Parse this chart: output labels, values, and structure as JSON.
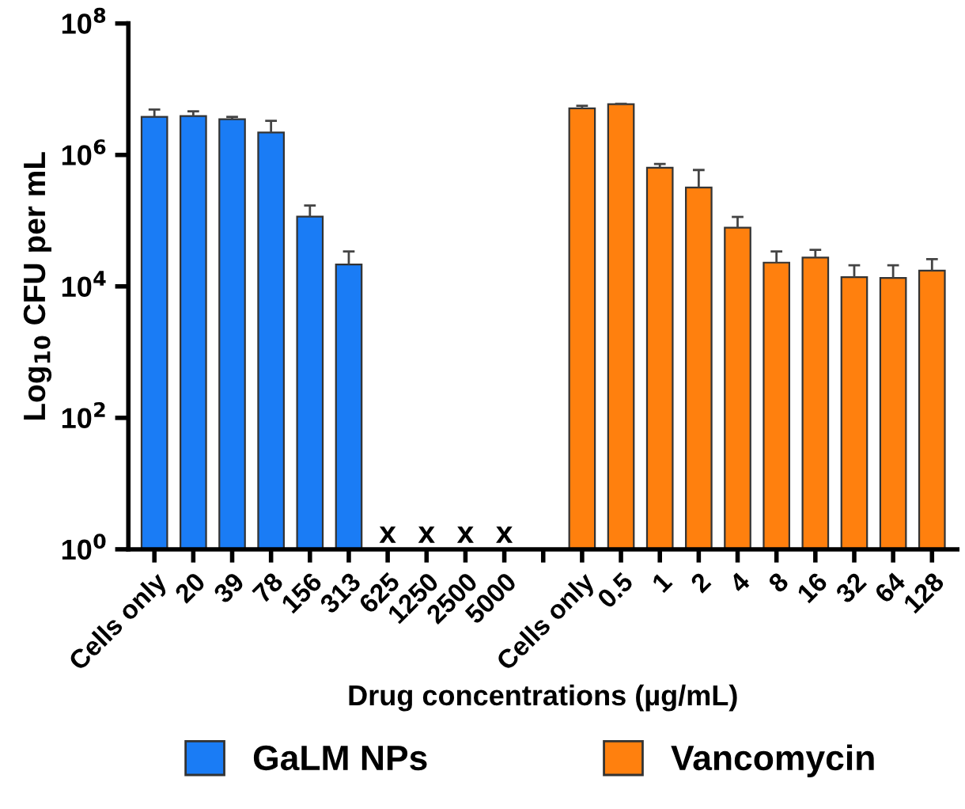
{
  "chart_data": {
    "type": "bar",
    "categories": [
      "Cells only",
      "20",
      "39",
      "78",
      "156",
      "313",
      "625",
      "1250",
      "2500",
      "5000",
      null,
      "Cells only",
      "0.5",
      "1",
      "2",
      "4",
      "8",
      "16",
      "32",
      "64",
      "128"
    ],
    "series": [
      {
        "name": "GaLM NPs",
        "color": "#1a7cf5",
        "values": [
          3800000,
          3900000,
          3500000,
          2200000,
          115000,
          21500,
          null,
          null,
          null,
          null,
          null,
          null,
          null,
          null,
          null,
          null,
          null,
          null,
          null,
          null,
          null
        ],
        "errors": [
          [
            3800000,
            4900000
          ],
          [
            3900000,
            4600000
          ],
          [
            3500000,
            3800000
          ],
          [
            2200000,
            3300000
          ],
          [
            115000,
            170000
          ],
          [
            21500,
            34000
          ],
          null,
          null,
          null,
          null,
          null,
          null,
          null,
          null,
          null,
          null,
          null,
          null,
          null,
          null,
          null
        ]
      },
      {
        "name": "Vancomycin",
        "color": "#ff800e",
        "values": [
          null,
          null,
          null,
          null,
          null,
          null,
          null,
          null,
          null,
          null,
          null,
          5100000,
          5900000,
          640000,
          320000,
          78000,
          23000,
          27500,
          13800,
          13400,
          17400
        ],
        "errors": [
          null,
          null,
          null,
          null,
          null,
          null,
          null,
          null,
          null,
          null,
          null,
          [
            5100000,
            5600000
          ],
          [
            5900000,
            6000000
          ],
          [
            640000,
            730000
          ],
          [
            320000,
            590000
          ],
          [
            78000,
            114000
          ],
          [
            23000,
            34000
          ],
          [
            27500,
            36000
          ],
          [
            13800,
            21000
          ],
          [
            13400,
            21000
          ],
          [
            17400,
            26000
          ]
        ]
      }
    ],
    "ylabel": "Log$_{10}$ CFU per mL",
    "xlabel": "Drug concentrations (µg/mL)",
    "log": true,
    "ylim": [
      1,
      100000000
    ],
    "yticks": [
      {
        "value": 1,
        "label": "10$^{0}$"
      },
      {
        "value": 100,
        "label": "10$^{2}$"
      },
      {
        "value": 10000,
        "label": "10$^{4}$"
      },
      {
        "value": 1000000,
        "label": "10$^{6}$"
      },
      {
        "value": 100000000,
        "label": "10$^{8}$"
      }
    ],
    "annotations": [
      "x",
      "x",
      "x",
      "x"
    ],
    "legend": "bottom",
    "grid": false
  }
}
